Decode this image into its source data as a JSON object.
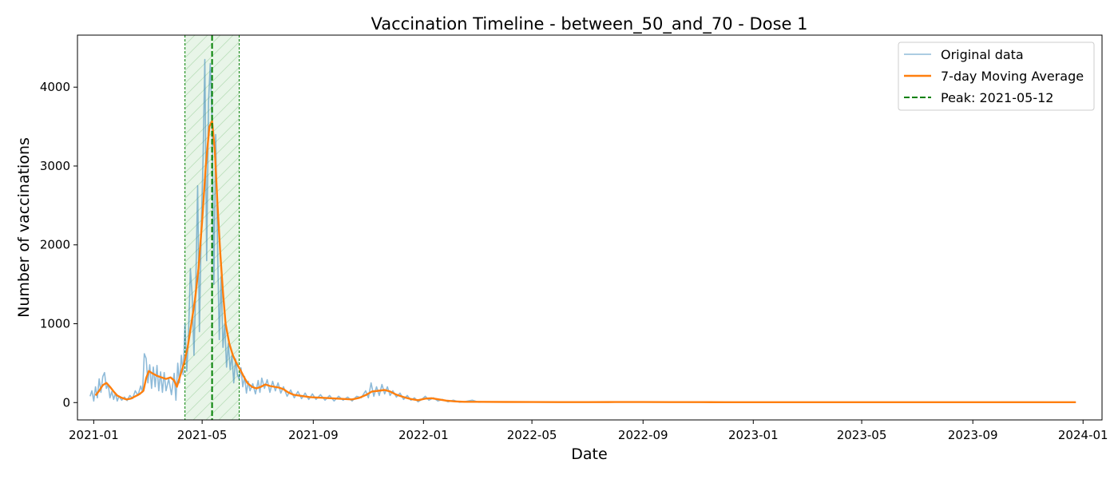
{
  "chart_data": {
    "type": "line",
    "title": "Vaccination Timeline - between_50_and_70 - Dose 1",
    "xlabel": "Date",
    "ylabel": "Number of vaccinations",
    "xlim": [
      "2020-12-14",
      "2024-01-22"
    ],
    "ylim": [
      -220,
      4660
    ],
    "x_ticks": [
      "2021-01",
      "2021-05",
      "2021-09",
      "2022-01",
      "2022-05",
      "2022-09",
      "2023-01",
      "2023-05",
      "2023-09",
      "2024-01"
    ],
    "y_ticks": [
      0,
      1000,
      2000,
      3000,
      4000
    ],
    "grid": false,
    "legend_position": "top-right",
    "peak_date": "2021-05-12",
    "peak_window": [
      "2021-04-12",
      "2021-06-11"
    ],
    "series": [
      {
        "name": "Original data",
        "color": "#1f77b4",
        "opacity": 0.5,
        "points": [
          [
            "2020-12-28",
            80
          ],
          [
            "2020-12-30",
            150
          ],
          [
            "2021-01-01",
            20
          ],
          [
            "2021-01-03",
            200
          ],
          [
            "2021-01-05",
            60
          ],
          [
            "2021-01-07",
            300
          ],
          [
            "2021-01-09",
            130
          ],
          [
            "2021-01-11",
            330
          ],
          [
            "2021-01-13",
            380
          ],
          [
            "2021-01-15",
            180
          ],
          [
            "2021-01-17",
            230
          ],
          [
            "2021-01-19",
            60
          ],
          [
            "2021-01-21",
            140
          ],
          [
            "2021-01-23",
            40
          ],
          [
            "2021-01-25",
            120
          ],
          [
            "2021-01-27",
            20
          ],
          [
            "2021-01-29",
            80
          ],
          [
            "2021-02-01",
            30
          ],
          [
            "2021-02-04",
            70
          ],
          [
            "2021-02-07",
            25
          ],
          [
            "2021-02-10",
            90
          ],
          [
            "2021-02-13",
            50
          ],
          [
            "2021-02-16",
            150
          ],
          [
            "2021-02-19",
            90
          ],
          [
            "2021-02-22",
            210
          ],
          [
            "2021-02-24",
            130
          ],
          [
            "2021-02-26",
            620
          ],
          [
            "2021-02-28",
            560
          ],
          [
            "2021-03-02",
            250
          ],
          [
            "2021-03-04",
            480
          ],
          [
            "2021-03-06",
            180
          ],
          [
            "2021-03-08",
            450
          ],
          [
            "2021-03-10",
            200
          ],
          [
            "2021-03-12",
            470
          ],
          [
            "2021-03-14",
            150
          ],
          [
            "2021-03-16",
            390
          ],
          [
            "2021-03-18",
            130
          ],
          [
            "2021-03-20",
            380
          ],
          [
            "2021-03-22",
            150
          ],
          [
            "2021-03-25",
            300
          ],
          [
            "2021-03-28",
            100
          ],
          [
            "2021-03-31",
            370
          ],
          [
            "2021-04-02",
            30
          ],
          [
            "2021-04-04",
            500
          ],
          [
            "2021-04-06",
            250
          ],
          [
            "2021-04-08",
            600
          ],
          [
            "2021-04-10",
            350
          ],
          [
            "2021-04-12",
            1000
          ],
          [
            "2021-04-14",
            400
          ],
          [
            "2021-04-16",
            900
          ],
          [
            "2021-04-18",
            1700
          ],
          [
            "2021-04-20",
            1350
          ],
          [
            "2021-04-22",
            600
          ],
          [
            "2021-04-24",
            1500
          ],
          [
            "2021-04-26",
            2750
          ],
          [
            "2021-04-28",
            900
          ],
          [
            "2021-04-30",
            2200
          ],
          [
            "2021-05-02",
            3100
          ],
          [
            "2021-05-04",
            4350
          ],
          [
            "2021-05-06",
            1800
          ],
          [
            "2021-05-08",
            3800
          ],
          [
            "2021-05-10",
            4300
          ],
          [
            "2021-05-12",
            3600
          ],
          [
            "2021-05-14",
            1500
          ],
          [
            "2021-05-16",
            3400
          ],
          [
            "2021-05-18",
            2000
          ],
          [
            "2021-05-20",
            800
          ],
          [
            "2021-05-22",
            1600
          ],
          [
            "2021-05-24",
            700
          ],
          [
            "2021-05-26",
            1000
          ],
          [
            "2021-05-28",
            450
          ],
          [
            "2021-05-30",
            750
          ],
          [
            "2021-06-01",
            420
          ],
          [
            "2021-06-03",
            600
          ],
          [
            "2021-06-05",
            250
          ],
          [
            "2021-06-07",
            550
          ],
          [
            "2021-06-09",
            350
          ],
          [
            "2021-06-11",
            300
          ],
          [
            "2021-06-13",
            440
          ],
          [
            "2021-06-15",
            200
          ],
          [
            "2021-06-17",
            330
          ],
          [
            "2021-06-19",
            120
          ],
          [
            "2021-06-21",
            270
          ],
          [
            "2021-06-23",
            150
          ],
          [
            "2021-06-26",
            240
          ],
          [
            "2021-06-29",
            110
          ],
          [
            "2021-07-02",
            280
          ],
          [
            "2021-07-04",
            130
          ],
          [
            "2021-07-06",
            310
          ],
          [
            "2021-07-09",
            180
          ],
          [
            "2021-07-12",
            290
          ],
          [
            "2021-07-15",
            130
          ],
          [
            "2021-07-18",
            270
          ],
          [
            "2021-07-21",
            150
          ],
          [
            "2021-07-24",
            250
          ],
          [
            "2021-07-27",
            120
          ],
          [
            "2021-07-30",
            200
          ],
          [
            "2021-08-03",
            80
          ],
          [
            "2021-08-07",
            160
          ],
          [
            "2021-08-11",
            60
          ],
          [
            "2021-08-15",
            140
          ],
          [
            "2021-08-19",
            50
          ],
          [
            "2021-08-23",
            120
          ],
          [
            "2021-08-27",
            40
          ],
          [
            "2021-08-31",
            110
          ],
          [
            "2021-09-04",
            40
          ],
          [
            "2021-09-09",
            100
          ],
          [
            "2021-09-14",
            30
          ],
          [
            "2021-09-19",
            90
          ],
          [
            "2021-09-24",
            20
          ],
          [
            "2021-09-29",
            80
          ],
          [
            "2021-10-04",
            30
          ],
          [
            "2021-10-09",
            70
          ],
          [
            "2021-10-14",
            20
          ],
          [
            "2021-10-19",
            80
          ],
          [
            "2021-10-24",
            60
          ],
          [
            "2021-10-29",
            150
          ],
          [
            "2021-11-01",
            60
          ],
          [
            "2021-11-04",
            250
          ],
          [
            "2021-11-07",
            80
          ],
          [
            "2021-11-10",
            200
          ],
          [
            "2021-11-13",
            90
          ],
          [
            "2021-11-16",
            230
          ],
          [
            "2021-11-19",
            110
          ],
          [
            "2021-11-22",
            200
          ],
          [
            "2021-11-25",
            90
          ],
          [
            "2021-11-28",
            150
          ],
          [
            "2021-12-02",
            70
          ],
          [
            "2021-12-06",
            120
          ],
          [
            "2021-12-10",
            40
          ],
          [
            "2021-12-14",
            90
          ],
          [
            "2021-12-18",
            30
          ],
          [
            "2021-12-22",
            60
          ],
          [
            "2021-12-26",
            10
          ],
          [
            "2021-12-30",
            40
          ],
          [
            "2022-01-03",
            80
          ],
          [
            "2022-01-07",
            30
          ],
          [
            "2022-01-12",
            60
          ],
          [
            "2022-01-17",
            20
          ],
          [
            "2022-01-22",
            40
          ],
          [
            "2022-01-28",
            10
          ],
          [
            "2022-02-03",
            30
          ],
          [
            "2022-02-10",
            5
          ],
          [
            "2022-02-17",
            15
          ],
          [
            "2022-02-24",
            30
          ],
          [
            "2022-03-03",
            5
          ],
          [
            "2022-03-15",
            10
          ],
          [
            "2022-04-01",
            8
          ],
          [
            "2022-05-01",
            6
          ],
          [
            "2022-06-01",
            5
          ],
          [
            "2022-07-01",
            5
          ],
          [
            "2022-08-01",
            8
          ],
          [
            "2022-09-01",
            7
          ],
          [
            "2022-10-01",
            6
          ],
          [
            "2022-11-01",
            5
          ],
          [
            "2022-12-01",
            6
          ],
          [
            "2023-01-01",
            4
          ],
          [
            "2023-03-01",
            4
          ],
          [
            "2023-05-01",
            5
          ],
          [
            "2023-07-01",
            4
          ],
          [
            "2023-09-01",
            5
          ],
          [
            "2023-11-01",
            6
          ],
          [
            "2023-12-24",
            5
          ]
        ]
      },
      {
        "name": "7-day Moving Average",
        "color": "#ff7f0e",
        "opacity": 1,
        "points": [
          [
            "2021-01-03",
            90
          ],
          [
            "2021-01-07",
            150
          ],
          [
            "2021-01-11",
            220
          ],
          [
            "2021-01-15",
            250
          ],
          [
            "2021-01-19",
            200
          ],
          [
            "2021-01-23",
            140
          ],
          [
            "2021-01-27",
            90
          ],
          [
            "2021-02-01",
            60
          ],
          [
            "2021-02-06",
            40
          ],
          [
            "2021-02-11",
            50
          ],
          [
            "2021-02-16",
            80
          ],
          [
            "2021-02-21",
            110
          ],
          [
            "2021-02-25",
            150
          ],
          [
            "2021-02-28",
            310
          ],
          [
            "2021-03-03",
            400
          ],
          [
            "2021-03-07",
            370
          ],
          [
            "2021-03-12",
            340
          ],
          [
            "2021-03-17",
            320
          ],
          [
            "2021-03-22",
            300
          ],
          [
            "2021-03-27",
            320
          ],
          [
            "2021-03-31",
            280
          ],
          [
            "2021-04-03",
            200
          ],
          [
            "2021-04-07",
            350
          ],
          [
            "2021-04-11",
            500
          ],
          [
            "2021-04-15",
            700
          ],
          [
            "2021-04-19",
            1000
          ],
          [
            "2021-04-23",
            1300
          ],
          [
            "2021-04-27",
            1700
          ],
          [
            "2021-05-01",
            2300
          ],
          [
            "2021-05-05",
            3000
          ],
          [
            "2021-05-09",
            3500
          ],
          [
            "2021-05-12",
            3570
          ],
          [
            "2021-05-15",
            3200
          ],
          [
            "2021-05-18",
            2500
          ],
          [
            "2021-05-21",
            1900
          ],
          [
            "2021-05-24",
            1400
          ],
          [
            "2021-05-27",
            1000
          ],
          [
            "2021-05-31",
            750
          ],
          [
            "2021-06-04",
            600
          ],
          [
            "2021-06-08",
            500
          ],
          [
            "2021-06-12",
            420
          ],
          [
            "2021-06-16",
            330
          ],
          [
            "2021-06-20",
            250
          ],
          [
            "2021-06-25",
            200
          ],
          [
            "2021-06-30",
            180
          ],
          [
            "2021-07-05",
            200
          ],
          [
            "2021-07-10",
            230
          ],
          [
            "2021-07-15",
            210
          ],
          [
            "2021-07-20",
            200
          ],
          [
            "2021-07-25",
            190
          ],
          [
            "2021-07-30",
            170
          ],
          [
            "2021-08-04",
            130
          ],
          [
            "2021-08-10",
            100
          ],
          [
            "2021-08-16",
            90
          ],
          [
            "2021-08-22",
            80
          ],
          [
            "2021-08-28",
            70
          ],
          [
            "2021-09-04",
            65
          ],
          [
            "2021-09-12",
            60
          ],
          [
            "2021-09-20",
            55
          ],
          [
            "2021-09-28",
            50
          ],
          [
            "2021-10-06",
            45
          ],
          [
            "2021-10-14",
            40
          ],
          [
            "2021-10-22",
            60
          ],
          [
            "2021-10-30",
            100
          ],
          [
            "2021-11-05",
            140
          ],
          [
            "2021-11-12",
            150
          ],
          [
            "2021-11-19",
            160
          ],
          [
            "2021-11-25",
            140
          ],
          [
            "2021-12-02",
            100
          ],
          [
            "2021-12-10",
            70
          ],
          [
            "2021-12-18",
            45
          ],
          [
            "2021-12-26",
            30
          ],
          [
            "2022-01-03",
            50
          ],
          [
            "2022-01-10",
            55
          ],
          [
            "2022-01-18",
            40
          ],
          [
            "2022-01-26",
            25
          ],
          [
            "2022-02-05",
            15
          ],
          [
            "2022-02-15",
            10
          ],
          [
            "2022-03-01",
            10
          ],
          [
            "2022-04-01",
            8
          ],
          [
            "2022-05-01",
            7
          ],
          [
            "2022-06-01",
            6
          ],
          [
            "2022-07-01",
            6
          ],
          [
            "2022-08-01",
            7
          ],
          [
            "2022-09-01",
            7
          ],
          [
            "2022-10-01",
            6
          ],
          [
            "2022-11-01",
            6
          ],
          [
            "2022-12-01",
            5
          ],
          [
            "2023-01-01",
            5
          ],
          [
            "2023-03-01",
            5
          ],
          [
            "2023-05-01",
            5
          ],
          [
            "2023-07-01",
            5
          ],
          [
            "2023-09-01",
            5
          ],
          [
            "2023-11-01",
            5
          ],
          [
            "2023-12-24",
            5
          ]
        ]
      }
    ],
    "legend": [
      {
        "label": "Original data",
        "color": "#1f77b4",
        "style": "solid-light"
      },
      {
        "label": "7-day Moving Average",
        "color": "#ff7f0e",
        "style": "solid"
      },
      {
        "label": "Peak: 2021-05-12",
        "color": "#008000",
        "style": "dashed"
      }
    ]
  }
}
